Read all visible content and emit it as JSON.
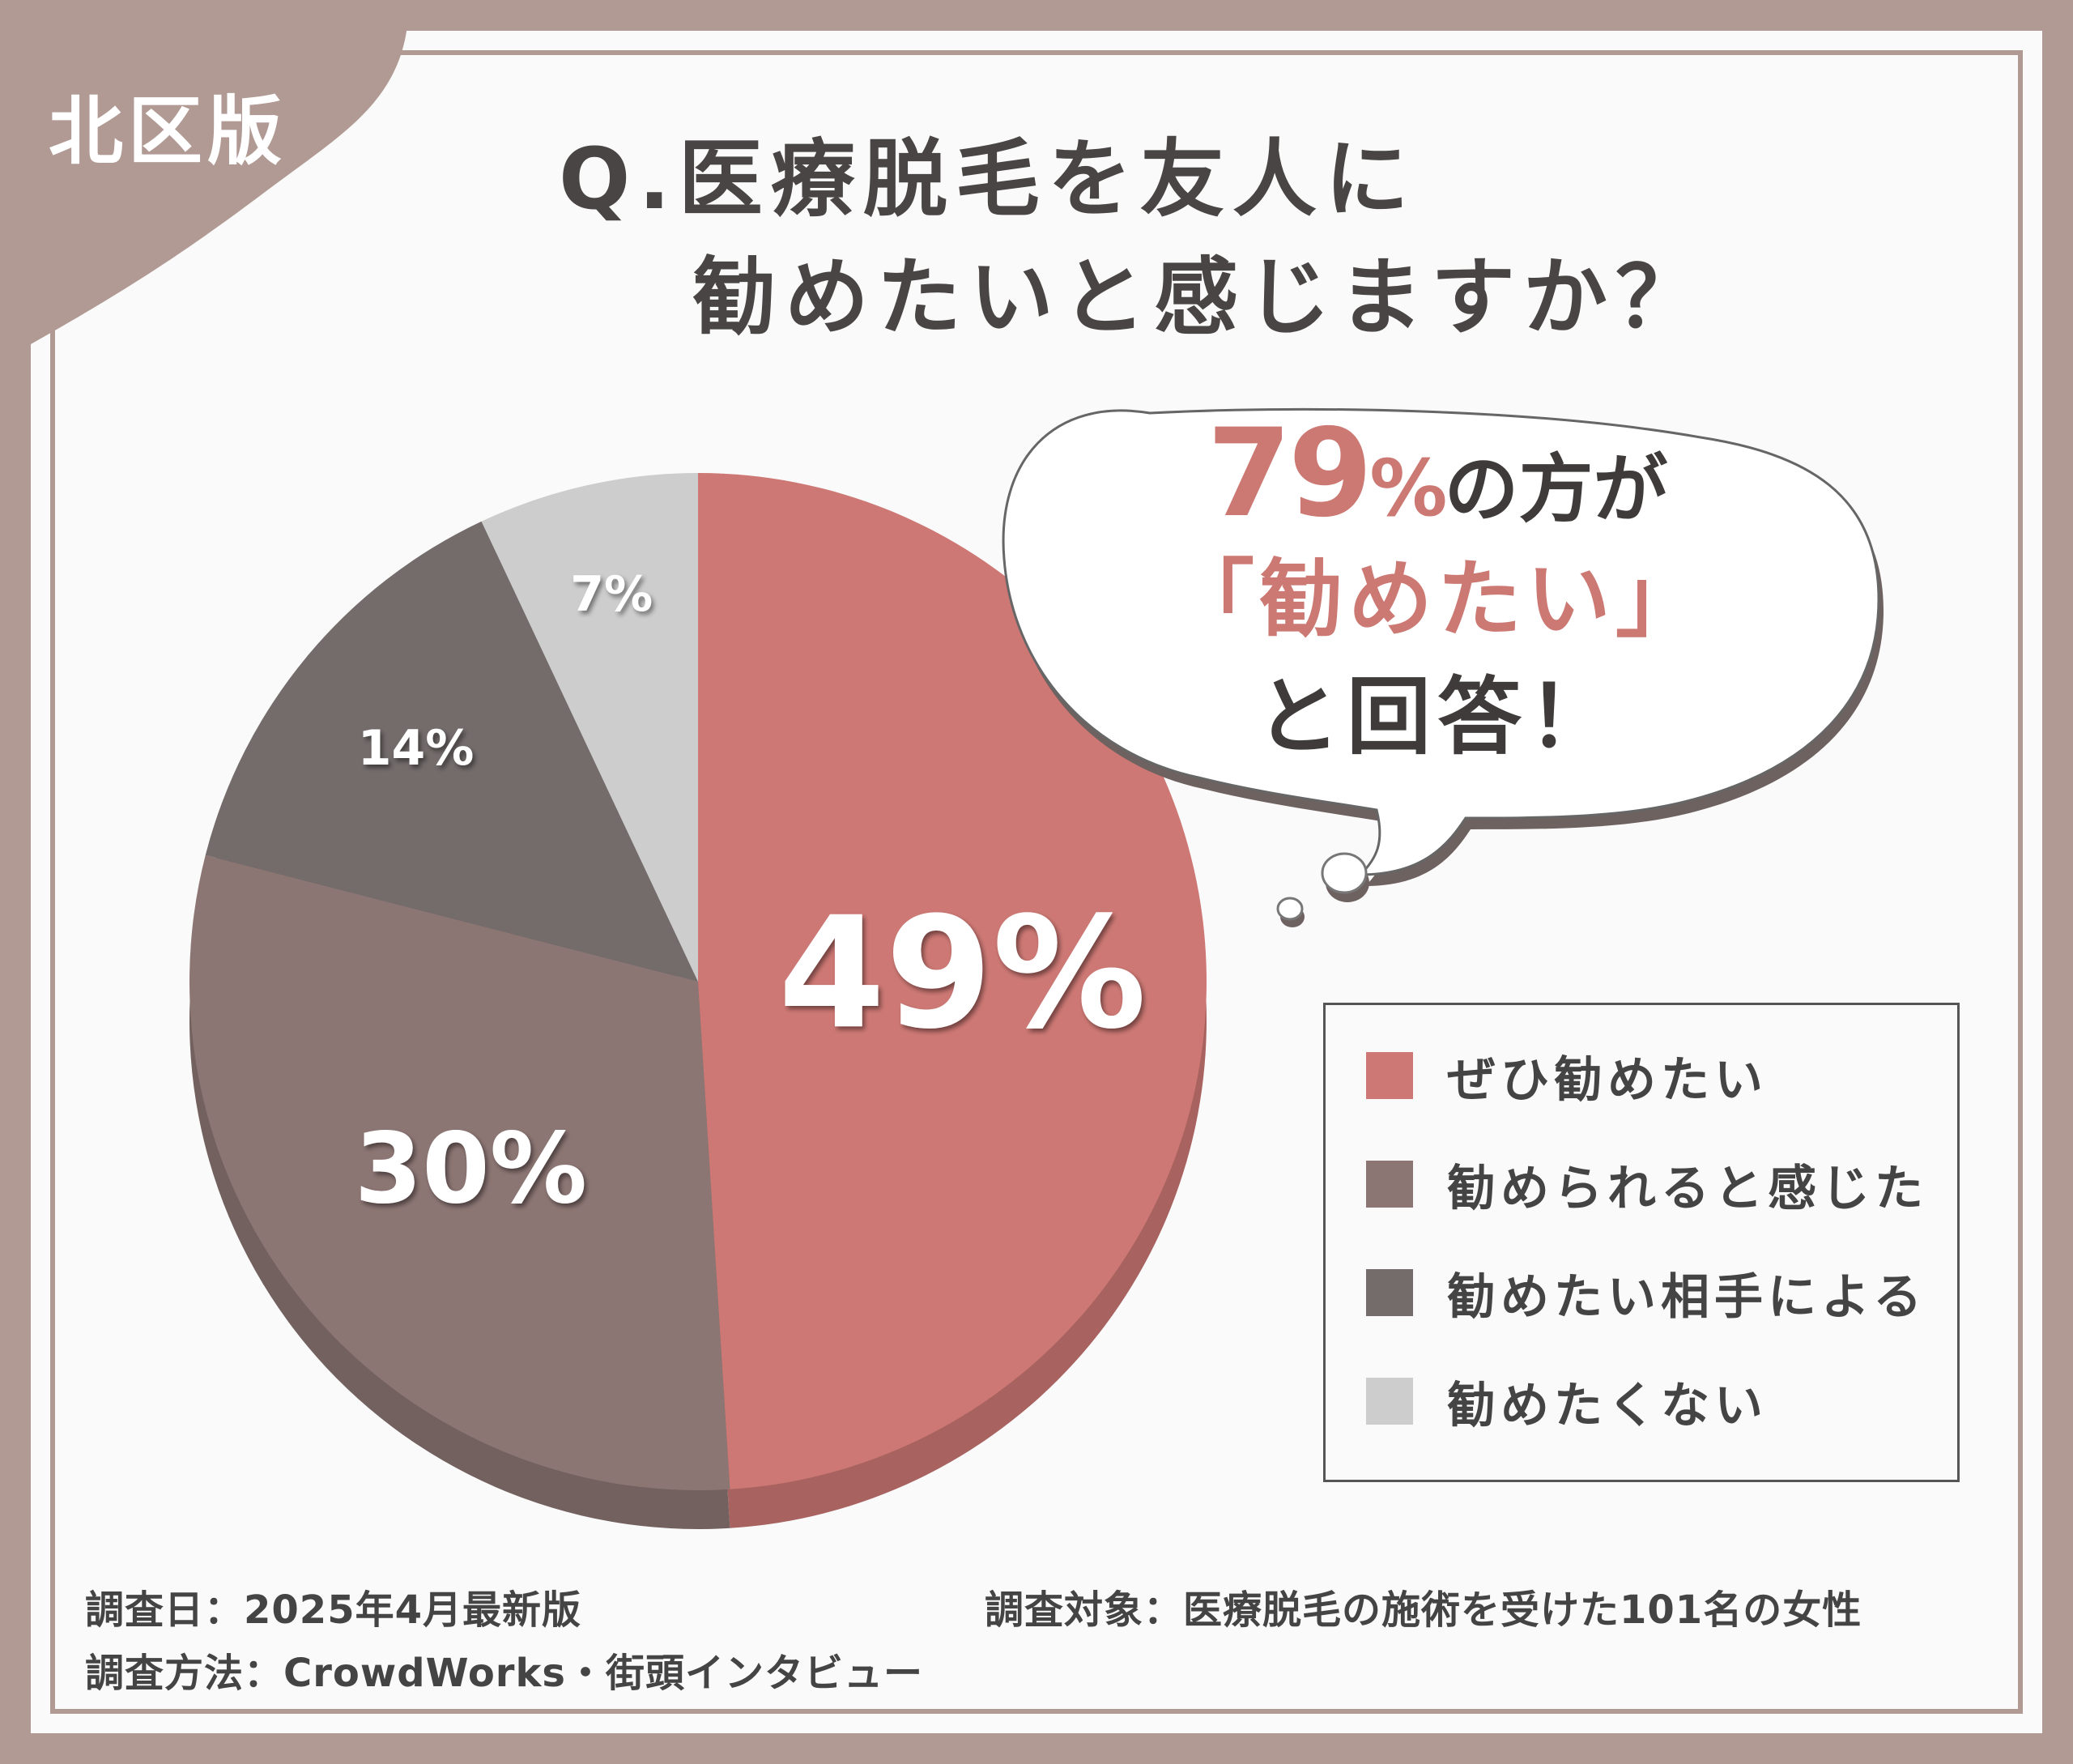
{
  "region_label": "北区版",
  "title": {
    "line1": "Q.医療脱毛を友人に",
    "line2": "勧めたいと感じますか？"
  },
  "callout": {
    "percent": "79",
    "percent_symbol": "%",
    "line1_suffix": "の方が",
    "line2": "「勧めたい」",
    "line3": "と回答！"
  },
  "chart_data": {
    "type": "pie",
    "title": "Q.医療脱毛を友人に勧めたいと感じますか？",
    "categories": [
      "ぜひ勧めたい",
      "勧められると感じた",
      "勧めたい相手による",
      "勧めたくない"
    ],
    "values": [
      49,
      30,
      14,
      7
    ],
    "unit": "%",
    "start_angle": "12 o'clock, clockwise",
    "colors": [
      "#cd7874",
      "#8c7674",
      "#736c6b",
      "#cecdcd"
    ],
    "legend_position": "right"
  },
  "footer": {
    "survey_date": "調査日：2025年4月最新版",
    "survey_method": "調査方法：CrowdWorks・街頭インタビュー",
    "survey_target": "調査対象：医療脱毛の施術を受けた101名の女性"
  }
}
